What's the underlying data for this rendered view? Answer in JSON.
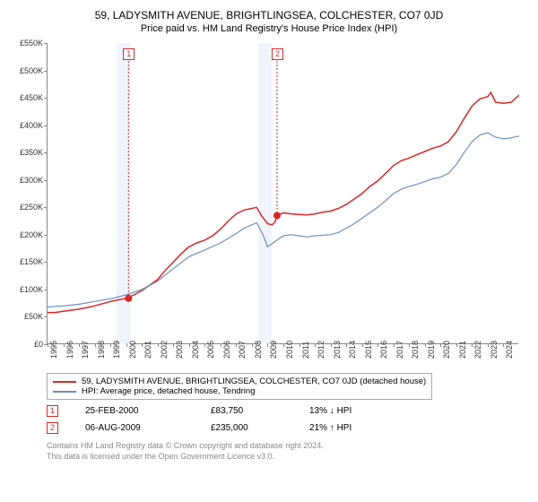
{
  "title": "59, LADYSMITH AVENUE, BRIGHTLINGSEA, COLCHESTER, CO7 0JD",
  "subtitle": "Price paid vs. HM Land Registry's House Price Index (HPI)",
  "chart": {
    "type": "line",
    "xlim": [
      1995,
      2025
    ],
    "ylim": [
      0,
      550000
    ],
    "ytick_step": 50000,
    "yticks": [
      "£0",
      "£50K",
      "£100K",
      "£150K",
      "£200K",
      "£250K",
      "£300K",
      "£350K",
      "£400K",
      "£450K",
      "£500K",
      "£550K"
    ],
    "xticks": [
      1995,
      1996,
      1997,
      1998,
      1999,
      2000,
      2001,
      2002,
      2003,
      2004,
      2005,
      2006,
      2007,
      2008,
      2009,
      2010,
      2011,
      2012,
      2013,
      2014,
      2015,
      2016,
      2017,
      2018,
      2019,
      2020,
      2021,
      2022,
      2023,
      2024
    ],
    "shaded_ranges": [
      {
        "start": 1999.4,
        "end": 2000.3,
        "color": "#f0f4fa"
      },
      {
        "start": 2008.4,
        "end": 2009.25,
        "color": "#f0f4fa"
      }
    ],
    "series": [
      {
        "name": "property",
        "color": "#d62728",
        "width": 1.5,
        "label": "59, LADYSMITH AVENUE, BRIGHTLINGSEA, COLCHESTER, CO7 0JD (detached house)",
        "points": [
          [
            1995,
            58000
          ],
          [
            1995.5,
            58000
          ],
          [
            1996,
            60000
          ],
          [
            1996.5,
            62000
          ],
          [
            1997,
            64000
          ],
          [
            1997.5,
            67000
          ],
          [
            1998,
            70000
          ],
          [
            1998.5,
            74000
          ],
          [
            1999,
            78000
          ],
          [
            1999.5,
            81000
          ],
          [
            2000,
            83750
          ],
          [
            2000.5,
            90000
          ],
          [
            2001,
            98000
          ],
          [
            2001.5,
            108000
          ],
          [
            2002,
            118000
          ],
          [
            2002.5,
            135000
          ],
          [
            2003,
            150000
          ],
          [
            2003.5,
            165000
          ],
          [
            2004,
            178000
          ],
          [
            2004.5,
            185000
          ],
          [
            2005,
            190000
          ],
          [
            2005.5,
            198000
          ],
          [
            2006,
            210000
          ],
          [
            2006.5,
            225000
          ],
          [
            2007,
            238000
          ],
          [
            2007.5,
            245000
          ],
          [
            2008,
            248000
          ],
          [
            2008.3,
            250000
          ],
          [
            2008.6,
            235000
          ],
          [
            2009,
            220000
          ],
          [
            2009.3,
            218000
          ],
          [
            2009.5,
            225000
          ],
          [
            2009.6,
            235000
          ],
          [
            2010,
            240000
          ],
          [
            2010.5,
            238000
          ],
          [
            2011,
            237000
          ],
          [
            2011.5,
            236000
          ],
          [
            2012,
            238000
          ],
          [
            2012.5,
            241000
          ],
          [
            2013,
            243000
          ],
          [
            2013.5,
            248000
          ],
          [
            2014,
            255000
          ],
          [
            2014.5,
            265000
          ],
          [
            2015,
            275000
          ],
          [
            2015.5,
            288000
          ],
          [
            2016,
            298000
          ],
          [
            2016.5,
            312000
          ],
          [
            2017,
            326000
          ],
          [
            2017.5,
            335000
          ],
          [
            2018,
            340000
          ],
          [
            2018.5,
            346000
          ],
          [
            2019,
            352000
          ],
          [
            2019.5,
            358000
          ],
          [
            2020,
            362000
          ],
          [
            2020.5,
            370000
          ],
          [
            2021,
            388000
          ],
          [
            2021.5,
            412000
          ],
          [
            2022,
            435000
          ],
          [
            2022.5,
            448000
          ],
          [
            2023,
            452000
          ],
          [
            2023.2,
            460000
          ],
          [
            2023.5,
            442000
          ],
          [
            2024,
            440000
          ],
          [
            2024.5,
            442000
          ],
          [
            2025,
            455000
          ]
        ]
      },
      {
        "name": "hpi",
        "color": "#6b8fc9",
        "width": 1.2,
        "label": "HPI: Average price, detached house, Tendring",
        "points": [
          [
            1995,
            68000
          ],
          [
            1996,
            70000
          ],
          [
            1997,
            73000
          ],
          [
            1998,
            78000
          ],
          [
            1999,
            83000
          ],
          [
            2000,
            90000
          ],
          [
            2001,
            100000
          ],
          [
            2002,
            115000
          ],
          [
            2003,
            138000
          ],
          [
            2004,
            160000
          ],
          [
            2005,
            172000
          ],
          [
            2006,
            185000
          ],
          [
            2007,
            202000
          ],
          [
            2007.5,
            212000
          ],
          [
            2008,
            218000
          ],
          [
            2008.3,
            222000
          ],
          [
            2008.7,
            200000
          ],
          [
            2009,
            178000
          ],
          [
            2009.5,
            188000
          ],
          [
            2010,
            198000
          ],
          [
            2010.5,
            200000
          ],
          [
            2011,
            198000
          ],
          [
            2011.5,
            196000
          ],
          [
            2012,
            198000
          ],
          [
            2013,
            200000
          ],
          [
            2013.5,
            204000
          ],
          [
            2014,
            212000
          ],
          [
            2014.5,
            220000
          ],
          [
            2015,
            230000
          ],
          [
            2015.5,
            240000
          ],
          [
            2016,
            250000
          ],
          [
            2016.5,
            262000
          ],
          [
            2017,
            275000
          ],
          [
            2017.5,
            283000
          ],
          [
            2018,
            288000
          ],
          [
            2018.5,
            292000
          ],
          [
            2019,
            297000
          ],
          [
            2019.5,
            302000
          ],
          [
            2020,
            305000
          ],
          [
            2020.5,
            312000
          ],
          [
            2021,
            328000
          ],
          [
            2021.5,
            350000
          ],
          [
            2022,
            370000
          ],
          [
            2022.5,
            382000
          ],
          [
            2023,
            386000
          ],
          [
            2023.5,
            378000
          ],
          [
            2024,
            375000
          ],
          [
            2024.5,
            377000
          ],
          [
            2025,
            380000
          ]
        ]
      }
    ],
    "markers": [
      {
        "x": 2000.15,
        "y": 83750,
        "label": "1"
      },
      {
        "x": 2009.6,
        "y": 235000,
        "label": "2"
      }
    ]
  },
  "sales": [
    {
      "label": "1",
      "date": "25-FEB-2000",
      "price": "£83,750",
      "pct": "13%",
      "arrow": "↓",
      "vs": "HPI"
    },
    {
      "label": "2",
      "date": "06-AUG-2009",
      "price": "£235,000",
      "pct": "21%",
      "arrow": "↑",
      "vs": "HPI"
    }
  ],
  "footer1": "Contains HM Land Registry data © Crown copyright and database right 2024.",
  "footer2": "This data is licensed under the Open Government Licence v3.0."
}
